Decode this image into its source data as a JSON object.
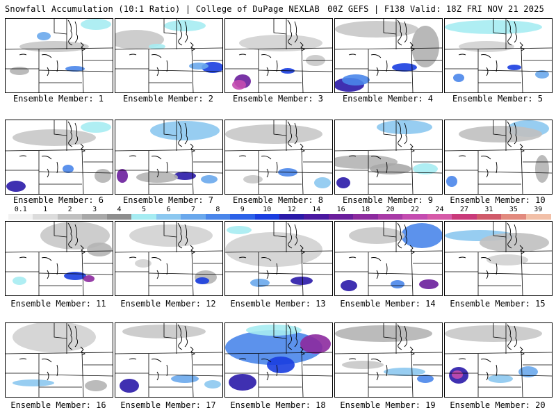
{
  "header": {
    "left_title": "Snowfall Accumulation (10:1 Ratio) | College of DuPage NEXLAB",
    "right_title": "00Z GEFS | F138 Valid: 18Z FRI NOV 21 2025"
  },
  "panels": [
    {
      "label": "Ensemble Member: 1"
    },
    {
      "label": "Ensemble Member: 2"
    },
    {
      "label": "Ensemble Member: 3"
    },
    {
      "label": "Ensemble Member: 4"
    },
    {
      "label": "Ensemble Member: 5"
    },
    {
      "label": "Ensemble Member: 6"
    },
    {
      "label": "Ensemble Member: 7"
    },
    {
      "label": "Ensemble Member: 8"
    },
    {
      "label": "Ensemble Member: 9"
    },
    {
      "label": "Ensemble Member: 10"
    },
    {
      "label": "Ensemble Member: 11"
    },
    {
      "label": "Ensemble Member: 12"
    },
    {
      "label": "Ensemble Member: 13"
    },
    {
      "label": "Ensemble Member: 14"
    },
    {
      "label": "Ensemble Member: 15"
    },
    {
      "label": "Ensemble Member: 16"
    },
    {
      "label": "Ensemble Member: 17"
    },
    {
      "label": "Ensemble Member: 18"
    },
    {
      "label": "Ensemble Member: 19"
    },
    {
      "label": "Ensemble Member: 20"
    }
  ],
  "colorbar": {
    "labels": [
      "0.1",
      "1",
      "2",
      "3",
      "4",
      "5",
      "6",
      "7",
      "8",
      "9",
      "10",
      "12",
      "14",
      "16",
      "18",
      "20",
      "22",
      "24",
      "27",
      "31",
      "35",
      "39"
    ],
    "colors": [
      "#f2f2f2",
      "#dcdcdc",
      "#c0c0c0",
      "#a8a8a8",
      "#8e8e8e",
      "#a6ecf2",
      "#8cc8f0",
      "#6aa8ec",
      "#4a86ea",
      "#2c62e8",
      "#1a3ee0",
      "#2a1aa8",
      "#4a18a0",
      "#6a1e9c",
      "#8c2a9e",
      "#a83aa6",
      "#c44cb0",
      "#d65aa8",
      "#c93a7a",
      "#d05a6a",
      "#e28a7e",
      "#f2c0a8"
    ]
  }
}
